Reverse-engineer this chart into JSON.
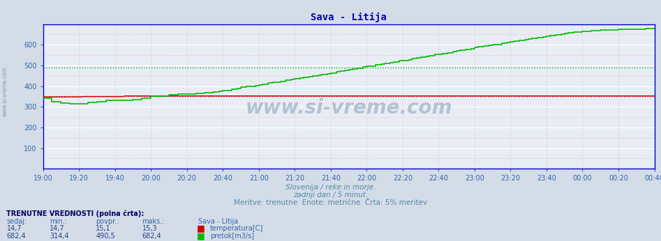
{
  "title": "Sava - Litija",
  "title_color": "#0000aa",
  "title_fontsize": 10,
  "bg_color": "#d4dce8",
  "plot_bg_color": "#e8edf5",
  "grid_color_major": "#ffffff",
  "grid_minor_color": "#e8aaaa",
  "axis_color": "#0000cc",
  "x_tick_labels": [
    "19:00",
    "19:20",
    "19:40",
    "20:00",
    "20:20",
    "20:40",
    "21:00",
    "21:20",
    "21:40",
    "22:00",
    "22:20",
    "22:40",
    "23:00",
    "23:20",
    "23:40",
    "00:00",
    "00:20",
    "00:40"
  ],
  "x_tick_positions": [
    0,
    20,
    40,
    60,
    80,
    100,
    120,
    140,
    160,
    180,
    200,
    220,
    240,
    260,
    280,
    300,
    320,
    340
  ],
  "ylim": [
    0,
    700
  ],
  "yticks": [
    100,
    200,
    300,
    400,
    500,
    600
  ],
  "temp_color": "#cc0000",
  "flow_color": "#00bb00",
  "flow_avg": 490.5,
  "temp_avg_scaled": 352.3,
  "subtitle1": "Slovenija / reke in morje.",
  "subtitle2": "zadnji dan / 5 minut.",
  "subtitle3": "Meritve: trenutne  Enote: metrične  Črta: 5% meritev",
  "subtitle_color": "#5588aa",
  "footer_header_color": "#000066",
  "footer_col_color": "#3366aa",
  "footer_val_color": "#224488",
  "watermark": "www.si-vreme.com",
  "watermark_color": "#aabbcc",
  "flow_segments": [
    [
      0,
      340
    ],
    [
      5,
      325
    ],
    [
      10,
      316
    ],
    [
      15,
      314
    ],
    [
      20,
      314
    ],
    [
      25,
      320
    ],
    [
      30,
      325
    ],
    [
      35,
      330
    ],
    [
      40,
      330
    ],
    [
      45,
      332
    ],
    [
      50,
      335
    ],
    [
      55,
      340
    ],
    [
      60,
      350
    ],
    [
      65,
      353
    ],
    [
      70,
      357
    ],
    [
      75,
      360
    ],
    [
      80,
      360
    ],
    [
      82,
      362
    ],
    [
      85,
      365
    ],
    [
      90,
      368
    ],
    [
      95,
      372
    ],
    [
      98,
      375
    ],
    [
      100,
      380
    ],
    [
      105,
      385
    ],
    [
      108,
      390
    ],
    [
      110,
      395
    ],
    [
      113,
      398
    ],
    [
      115,
      400
    ],
    [
      118,
      403
    ],
    [
      120,
      406
    ],
    [
      122,
      410
    ],
    [
      125,
      415
    ],
    [
      128,
      418
    ],
    [
      130,
      420
    ],
    [
      132,
      423
    ],
    [
      135,
      428
    ],
    [
      138,
      432
    ],
    [
      140,
      435
    ],
    [
      143,
      438
    ],
    [
      145,
      442
    ],
    [
      148,
      445
    ],
    [
      150,
      448
    ],
    [
      153,
      452
    ],
    [
      155,
      455
    ],
    [
      158,
      460
    ],
    [
      160,
      463
    ],
    [
      163,
      468
    ],
    [
      165,
      472
    ],
    [
      168,
      476
    ],
    [
      170,
      480
    ],
    [
      172,
      483
    ],
    [
      175,
      487
    ],
    [
      178,
      492
    ],
    [
      180,
      495
    ],
    [
      182,
      498
    ],
    [
      185,
      502
    ],
    [
      188,
      507
    ],
    [
      190,
      510
    ],
    [
      193,
      514
    ],
    [
      195,
      518
    ],
    [
      198,
      522
    ],
    [
      200,
      525
    ],
    [
      203,
      528
    ],
    [
      205,
      532
    ],
    [
      208,
      536
    ],
    [
      210,
      540
    ],
    [
      213,
      544
    ],
    [
      215,
      548
    ],
    [
      218,
      552
    ],
    [
      220,
      555
    ],
    [
      222,
      558
    ],
    [
      225,
      562
    ],
    [
      228,
      566
    ],
    [
      230,
      570
    ],
    [
      232,
      573
    ],
    [
      235,
      578
    ],
    [
      238,
      582
    ],
    [
      240,
      586
    ],
    [
      242,
      590
    ],
    [
      245,
      594
    ],
    [
      248,
      598
    ],
    [
      250,
      600
    ],
    [
      252,
      602
    ],
    [
      255,
      606
    ],
    [
      258,
      610
    ],
    [
      260,
      614
    ],
    [
      262,
      617
    ],
    [
      265,
      620
    ],
    [
      268,
      624
    ],
    [
      270,
      627
    ],
    [
      272,
      630
    ],
    [
      275,
      634
    ],
    [
      278,
      638
    ],
    [
      280,
      641
    ],
    [
      282,
      644
    ],
    [
      285,
      648
    ],
    [
      288,
      651
    ],
    [
      290,
      654
    ],
    [
      292,
      657
    ],
    [
      295,
      660
    ],
    [
      298,
      662
    ],
    [
      300,
      664
    ],
    [
      302,
      665
    ],
    [
      305,
      667
    ],
    [
      308,
      669
    ],
    [
      310,
      670
    ],
    [
      312,
      671
    ],
    [
      315,
      672
    ],
    [
      318,
      673
    ],
    [
      320,
      674
    ],
    [
      325,
      675
    ],
    [
      330,
      676
    ],
    [
      335,
      677
    ],
    [
      340,
      678
    ]
  ]
}
